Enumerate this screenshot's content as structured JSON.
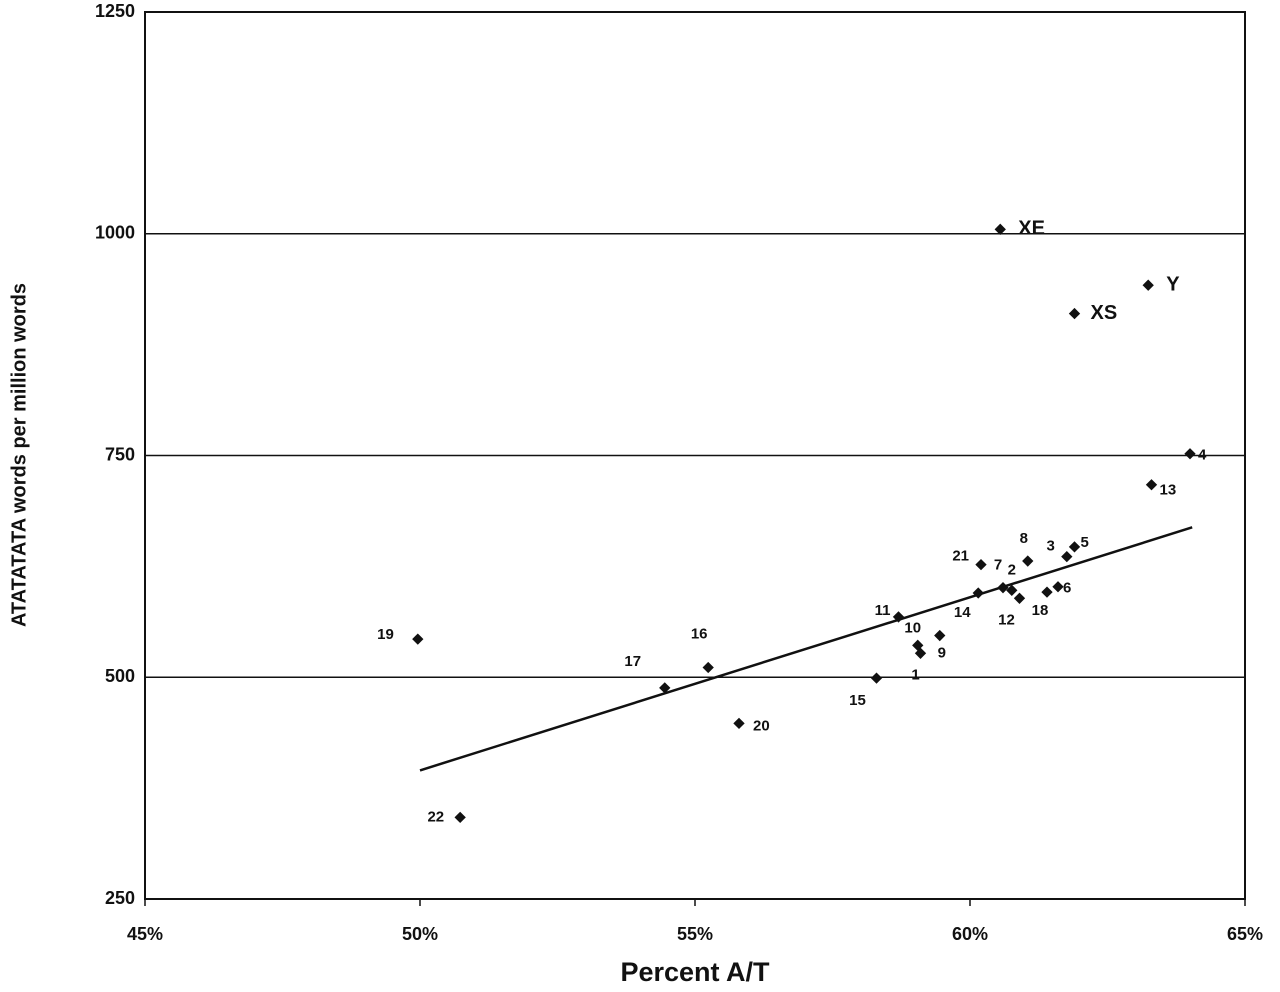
{
  "chart_data": {
    "type": "scatter",
    "x_label": "Percent A/T",
    "y_label": "ATATATATA words per million words",
    "x": [
      60.55,
      63.24,
      61.9,
      64.0,
      63.3,
      61.9,
      61.76,
      61.05,
      60.2,
      60.6,
      60.76,
      61.6,
      61.4,
      60.9,
      60.15,
      58.7,
      59.05,
      59.45,
      59.1,
      58.3,
      55.24,
      54.45,
      55.8,
      49.96,
      50.73
    ],
    "values": [
      1005,
      942,
      910,
      752,
      717,
      647,
      636,
      631,
      627,
      601,
      598,
      602,
      596,
      589,
      595,
      568,
      536,
      547,
      527,
      499,
      511,
      488,
      448,
      543,
      342
    ],
    "point_labels": [
      "XE",
      "Y",
      "XS",
      "4",
      "13",
      "5",
      "3",
      "8",
      "21",
      "7",
      "2",
      "6",
      "18",
      "12",
      "14",
      "11",
      "10",
      "9",
      "1",
      "15",
      "16",
      "17",
      "20",
      "19",
      "22"
    ],
    "color": "#111111",
    "trendline": {
      "x": [
        50.0,
        64.04
      ],
      "values": [
        395,
        669
      ]
    },
    "xlim": [
      45,
      65
    ],
    "ylim": [
      250,
      1250
    ],
    "xticks": [
      {
        "value": 45,
        "label": "45%"
      },
      {
        "value": 50,
        "label": "50%"
      },
      {
        "value": 55,
        "label": "55%"
      },
      {
        "value": 60,
        "label": "60%"
      },
      {
        "value": 65,
        "label": "65%"
      }
    ],
    "yticks": [
      250,
      500,
      750,
      1000,
      1250
    ],
    "grid": true
  }
}
